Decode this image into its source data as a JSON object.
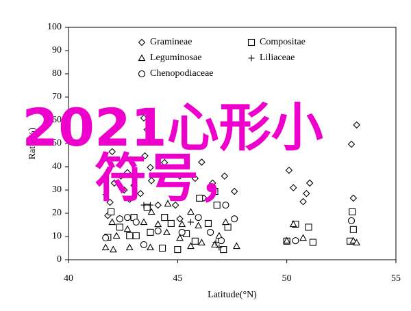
{
  "chart_data": {
    "type": "scatter",
    "xlabel": "Latitude(°N)",
    "ylabel": "Rate(%)",
    "annotation": "2021心形小符号，",
    "xlim": [
      40,
      55
    ],
    "xticks": [
      40,
      45,
      50,
      55
    ],
    "ylim": [
      0,
      100
    ],
    "yticks": [
      0,
      10,
      20,
      30,
      40,
      50,
      60,
      70,
      80,
      90,
      100
    ],
    "series": [
      {
        "name": "Gramineae",
        "marker": "diamond",
        "color": "#000000",
        "x": [
          53.2,
          52.96,
          53.05,
          50.1,
          50.3,
          51.05,
          50.75,
          50.9,
          43.45,
          43.6,
          42.0,
          42.4,
          42.7,
          42.1,
          42.55,
          43.0,
          43.5,
          43.75,
          44.4,
          43.8,
          43.3,
          42.8,
          41.9,
          44.1,
          45.1,
          45.8,
          46.1,
          47.15,
          47.6,
          46.6,
          44.9,
          42.35,
          41.8,
          45.1,
          46.2
        ],
        "y": [
          58,
          49.7,
          26.5,
          38.5,
          31,
          33,
          25,
          28.5,
          61,
          56,
          46.5,
          36,
          37.5,
          33,
          30,
          32,
          44.7,
          39.7,
          41.8,
          34,
          28.5,
          26,
          24.7,
          23.5,
          36,
          35,
          42,
          36,
          29.4,
          33,
          23.5,
          17.6,
          19,
          17.6,
          26.5
        ]
      },
      {
        "name": "Compositae",
        "marker": "square",
        "color": "#000000",
        "x": [
          53,
          53.05,
          52.9,
          51,
          51.2,
          50,
          50.4,
          47.3,
          46.7,
          46.8,
          46.0,
          46.4,
          45.8,
          45.0,
          44.3,
          43.75,
          43.1,
          42.8,
          42.35,
          41.95,
          41.8,
          44.4,
          43.6,
          43.0,
          44.7,
          45.4,
          47.1
        ],
        "y": [
          20.6,
          13,
          8,
          14,
          7.5,
          8,
          15.3,
          14,
          29.4,
          23.5,
          26.5,
          15.6,
          8,
          4.4,
          5,
          11.8,
          10.3,
          10.3,
          14,
          20.6,
          9.7,
          18.2,
          22.6,
          18.2,
          15.6,
          11.2,
          4.4
        ]
      },
      {
        "name": "Leguminosae",
        "marker": "triangle",
        "color": "#000000",
        "x": [
          53.05,
          53.2,
          50.3,
          50.75,
          50,
          42.05,
          41.7,
          42.8,
          42.2,
          42.0,
          42.7,
          43.45,
          43.8,
          44.1,
          44.5,
          45.1,
          45.2,
          45.6,
          45.95,
          46.1,
          46.7,
          46.9,
          47.2,
          47.7,
          45.6,
          43.75,
          44.55
        ],
        "y": [
          8.2,
          7.4,
          15.3,
          9.4,
          8.2,
          4.4,
          5.3,
          5.3,
          10.3,
          16.2,
          13.2,
          16.2,
          20.6,
          15.3,
          11.8,
          9.4,
          15.3,
          20.6,
          14.7,
          7.4,
          6.5,
          10.3,
          16.2,
          5.9,
          5.9,
          5.3,
          24.1
        ]
      },
      {
        "name": "Liliaceae",
        "marker": "plus",
        "color": "#000000",
        "x": [
          41.7,
          43.45,
          43.75,
          45.6,
          46.75,
          46.9
        ],
        "y": [
          28,
          23.5,
          23.5,
          16.2,
          7.4,
          5.3
        ]
      },
      {
        "name": "Chenopodiaceae",
        "marker": "circle",
        "color": "#000000",
        "x": [
          52.96,
          50.4,
          47.6,
          47.2,
          45.95,
          46.5,
          42.35,
          42.7,
          43.1,
          44.1,
          45.2,
          47.0,
          41.7,
          43.45
        ],
        "y": [
          16.8,
          8.2,
          17.6,
          23.5,
          18.2,
          11.8,
          17.6,
          18.2,
          16.2,
          12.4,
          11.8,
          8.2,
          9.4,
          6.5
        ]
      }
    ]
  }
}
